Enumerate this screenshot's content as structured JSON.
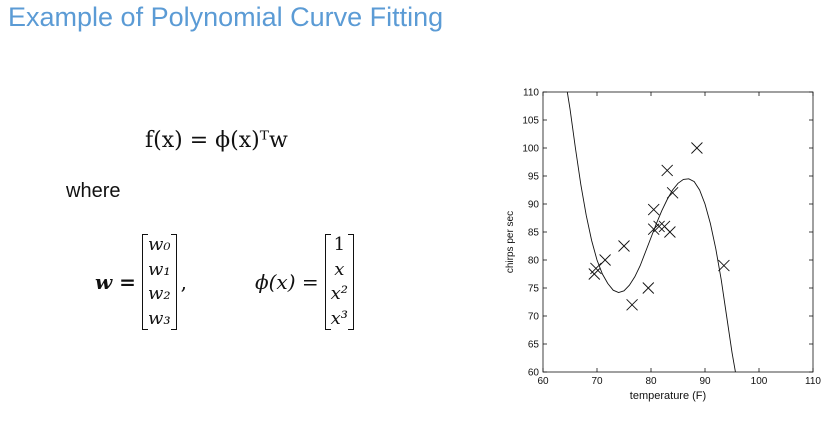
{
  "slide": {
    "title": "Example of Polynomial Curve Fitting",
    "where_label": "where",
    "title_color": "#5b9bd5"
  },
  "equations": {
    "main": "f(x) = ϕ(x)ᵀw",
    "w_lhs": "w =",
    "w_entries": [
      "w₀",
      "w₁",
      "w₂",
      "w₃"
    ],
    "phi_lhs": "ϕ(x) =",
    "phi_entries": [
      "1",
      "x",
      "x²",
      "x³"
    ]
  },
  "chart_data": {
    "type": "scatter",
    "xlabel": "temperature (F)",
    "ylabel": "chirps per sec",
    "xlim": [
      60,
      110
    ],
    "ylim": [
      60,
      110
    ],
    "xticks": [
      60,
      70,
      80,
      90,
      100,
      110
    ],
    "yticks": [
      60,
      65,
      70,
      75,
      80,
      85,
      90,
      95,
      100,
      105,
      110
    ],
    "grid": false,
    "marker": "x",
    "points": [
      {
        "x": 69.5,
        "y": 77.5
      },
      {
        "x": 69.8,
        "y": 78.5
      },
      {
        "x": 71.5,
        "y": 80.0
      },
      {
        "x": 75.0,
        "y": 82.5
      },
      {
        "x": 76.5,
        "y": 72.0
      },
      {
        "x": 79.5,
        "y": 75.0
      },
      {
        "x": 80.5,
        "y": 85.5
      },
      {
        "x": 80.5,
        "y": 89.0
      },
      {
        "x": 81.5,
        "y": 86.0
      },
      {
        "x": 82.5,
        "y": 86.0
      },
      {
        "x": 83.0,
        "y": 96.0
      },
      {
        "x": 83.5,
        "y": 85.0
      },
      {
        "x": 84.0,
        "y": 92.0
      },
      {
        "x": 88.5,
        "y": 100.0
      },
      {
        "x": 93.5,
        "y": 79.0
      }
    ],
    "curve": {
      "type": "cubic-fit",
      "x": [
        64.5,
        65,
        66,
        67,
        68,
        69,
        70,
        71,
        72,
        73,
        74,
        75,
        76,
        77,
        78,
        79,
        80,
        81,
        82,
        83,
        84,
        85,
        86,
        87,
        88,
        89,
        90,
        91,
        92,
        93,
        94,
        95,
        96
      ],
      "y": [
        110,
        107,
        100,
        93.5,
        88,
        83.5,
        80,
        77.5,
        75.8,
        74.6,
        74.2,
        74.5,
        75.5,
        77,
        79,
        81.5,
        84,
        86.5,
        88.8,
        90.8,
        92.5,
        93.7,
        94.4,
        94.5,
        94,
        92.5,
        90,
        86.5,
        82,
        76.5,
        70,
        63.5,
        58
      ]
    }
  }
}
